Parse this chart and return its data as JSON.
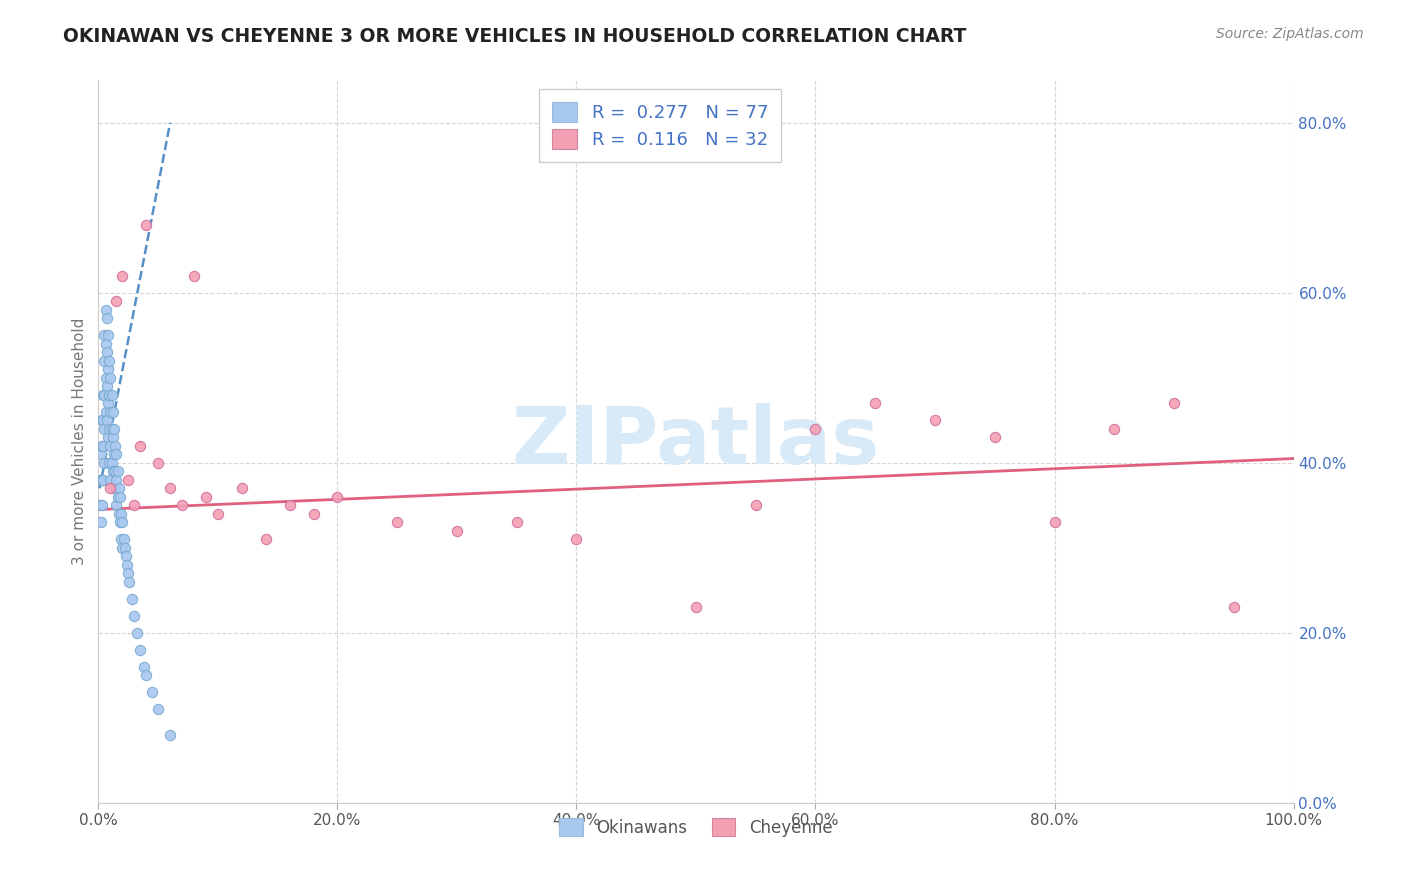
{
  "title": "OKINAWAN VS CHEYENNE 3 OR MORE VEHICLES IN HOUSEHOLD CORRELATION CHART",
  "source": "Source: ZipAtlas.com",
  "ylabel": "3 or more Vehicles in Household",
  "legend_label1": "Okinawans",
  "legend_label2": "Cheyenne",
  "R1": 0.277,
  "N1": 77,
  "R2": 0.116,
  "N2": 32,
  "okinawan_color": "#a8c8f0",
  "okinawan_edge": "#7aaad0",
  "cheyenne_color": "#f4a0b4",
  "cheyenne_edge": "#d070a0",
  "trendline1_color": "#5590c8",
  "trendline2_color": "#e06080",
  "ytick_color": "#4472c4",
  "xtick_color": "#555555",
  "watermark_color": "#d8eaf8",
  "title_color": "#222222",
  "source_color": "#888888",
  "xlim": [
    0.0,
    1.0
  ],
  "ylim": [
    0.0,
    0.85
  ],
  "xticks": [
    0.0,
    0.2,
    0.4,
    0.6,
    0.8,
    1.0
  ],
  "yticks": [
    0.0,
    0.2,
    0.4,
    0.6,
    0.8
  ],
  "okinawan_x": [
    0.001,
    0.001,
    0.002,
    0.002,
    0.002,
    0.003,
    0.003,
    0.003,
    0.003,
    0.004,
    0.004,
    0.004,
    0.004,
    0.005,
    0.005,
    0.005,
    0.005,
    0.005,
    0.006,
    0.006,
    0.006,
    0.006,
    0.007,
    0.007,
    0.007,
    0.007,
    0.008,
    0.008,
    0.008,
    0.008,
    0.009,
    0.009,
    0.009,
    0.009,
    0.01,
    0.01,
    0.01,
    0.01,
    0.011,
    0.011,
    0.011,
    0.012,
    0.012,
    0.012,
    0.013,
    0.013,
    0.013,
    0.014,
    0.014,
    0.015,
    0.015,
    0.015,
    0.016,
    0.016,
    0.017,
    0.017,
    0.018,
    0.018,
    0.019,
    0.019,
    0.02,
    0.02,
    0.021,
    0.022,
    0.023,
    0.024,
    0.025,
    0.026,
    0.028,
    0.03,
    0.032,
    0.035,
    0.038,
    0.04,
    0.045,
    0.05,
    0.06
  ],
  "okinawan_y": [
    0.38,
    0.35,
    0.41,
    0.38,
    0.33,
    0.45,
    0.42,
    0.38,
    0.35,
    0.48,
    0.45,
    0.42,
    0.38,
    0.55,
    0.52,
    0.48,
    0.44,
    0.4,
    0.58,
    0.54,
    0.5,
    0.46,
    0.57,
    0.53,
    0.49,
    0.45,
    0.55,
    0.51,
    0.47,
    0.43,
    0.52,
    0.48,
    0.44,
    0.4,
    0.5,
    0.46,
    0.42,
    0.38,
    0.48,
    0.44,
    0.4,
    0.46,
    0.43,
    0.39,
    0.44,
    0.41,
    0.37,
    0.42,
    0.39,
    0.41,
    0.38,
    0.35,
    0.39,
    0.36,
    0.37,
    0.34,
    0.36,
    0.33,
    0.34,
    0.31,
    0.33,
    0.3,
    0.31,
    0.3,
    0.29,
    0.28,
    0.27,
    0.26,
    0.24,
    0.22,
    0.2,
    0.18,
    0.16,
    0.15,
    0.13,
    0.11,
    0.08
  ],
  "cheyenne_x": [
    0.01,
    0.015,
    0.02,
    0.025,
    0.03,
    0.035,
    0.04,
    0.05,
    0.06,
    0.07,
    0.08,
    0.09,
    0.1,
    0.12,
    0.14,
    0.16,
    0.18,
    0.2,
    0.25,
    0.3,
    0.35,
    0.4,
    0.5,
    0.55,
    0.6,
    0.65,
    0.7,
    0.75,
    0.8,
    0.85,
    0.9,
    0.95
  ],
  "cheyenne_y": [
    0.37,
    0.59,
    0.62,
    0.38,
    0.35,
    0.42,
    0.68,
    0.4,
    0.37,
    0.35,
    0.62,
    0.36,
    0.34,
    0.37,
    0.31,
    0.35,
    0.34,
    0.36,
    0.33,
    0.32,
    0.33,
    0.31,
    0.23,
    0.35,
    0.44,
    0.47,
    0.45,
    0.43,
    0.33,
    0.44,
    0.47,
    0.23
  ],
  "trendline1_x": [
    0.001,
    0.06
  ],
  "trendline1_y": [
    0.37,
    0.8
  ],
  "trendline2_x": [
    0.0,
    1.0
  ],
  "trendline2_y": [
    0.345,
    0.405
  ]
}
